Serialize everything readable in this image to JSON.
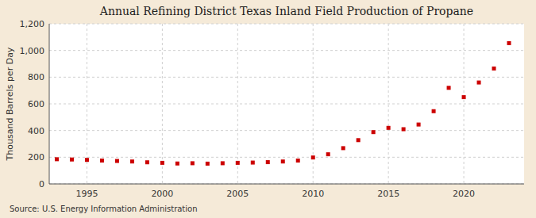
{
  "chart_data": {
    "type": "scatter",
    "title": "Annual Refining District Texas Inland Field Production of Propane",
    "ylabel": "Thousand Barrels per Day",
    "source": "Source: U.S. Energy Information Administration",
    "x": [
      1993,
      1994,
      1995,
      1996,
      1997,
      1998,
      1999,
      2000,
      2001,
      2002,
      2003,
      2004,
      2005,
      2006,
      2007,
      2008,
      2009,
      2010,
      2011,
      2012,
      2013,
      2014,
      2015,
      2016,
      2017,
      2018,
      2019,
      2020,
      2021,
      2022,
      2023
    ],
    "values": [
      185,
      183,
      180,
      175,
      172,
      168,
      162,
      158,
      153,
      155,
      152,
      155,
      158,
      160,
      163,
      168,
      175,
      198,
      222,
      268,
      328,
      388,
      420,
      410,
      445,
      545,
      720,
      650,
      760,
      865,
      1055
    ],
    "color": "#cc0000",
    "marker": "square",
    "xlim": [
      1992.5,
      2024
    ],
    "xticks": [
      1995,
      2000,
      2005,
      2010,
      2015,
      2020
    ],
    "ylim": [
      0,
      1200
    ],
    "yticks": [
      0,
      200,
      400,
      600,
      800,
      {
        "value": 1000,
        "label": "1,000"
      },
      {
        "value": 1200,
        "label": "1,200"
      }
    ],
    "grid": true
  }
}
